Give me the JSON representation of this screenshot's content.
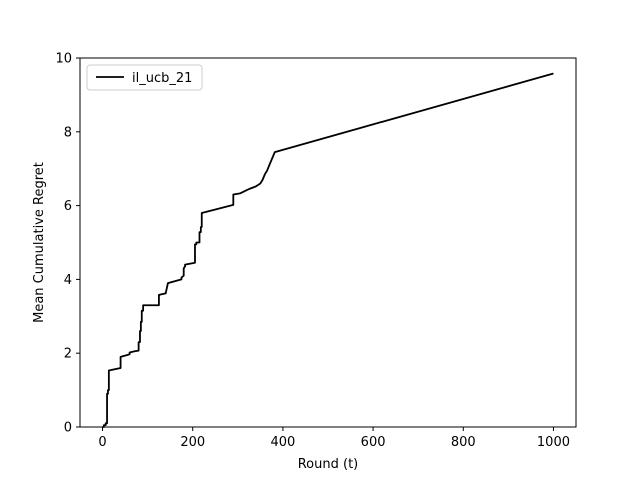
{
  "chart_data": {
    "type": "line",
    "title": "",
    "xlabel": "Round (t)",
    "ylabel": "Mean Cumulative Regret",
    "xlim": [
      -50,
      1050
    ],
    "ylim": [
      0,
      10
    ],
    "xticks": [
      0,
      200,
      400,
      600,
      800,
      1000
    ],
    "yticks": [
      0,
      2,
      4,
      6,
      8,
      10
    ],
    "xtick_labels": [
      "0",
      "200",
      "400",
      "600",
      "800",
      "1000"
    ],
    "ytick_labels": [
      "0",
      "2",
      "4",
      "6",
      "8",
      "10"
    ],
    "grid": false,
    "legend_position": "upper-left",
    "series": [
      {
        "name": "il_ucb_21",
        "color": "#000000",
        "x": [
          0,
          3,
          3,
          7,
          7,
          10,
          10,
          12,
          12,
          14,
          14,
          40,
          40,
          60,
          60,
          70,
          70,
          80,
          80,
          83,
          83,
          85,
          85,
          87,
          87,
          90,
          90,
          125,
          125,
          140,
          140,
          145,
          145,
          175,
          175,
          180,
          180,
          183,
          183,
          205,
          205,
          208,
          208,
          215,
          215,
          218,
          218,
          220,
          220,
          290,
          290,
          305,
          305,
          320,
          320,
          325,
          325,
          340,
          340,
          350,
          350,
          355,
          355,
          360,
          360,
          365,
          365,
          370,
          370,
          382,
          1000
        ],
        "y": [
          0,
          0,
          0.05,
          0.05,
          0.1,
          0.1,
          0.9,
          0.9,
          1.0,
          1.0,
          1.53,
          1.6,
          1.9,
          1.97,
          2.02,
          2.05,
          2.05,
          2.07,
          2.3,
          2.3,
          2.6,
          2.6,
          2.85,
          2.85,
          3.15,
          3.15,
          3.3,
          3.3,
          3.58,
          3.62,
          3.62,
          3.9,
          3.9,
          4.0,
          4.05,
          4.1,
          4.3,
          4.35,
          4.4,
          4.45,
          4.95,
          4.95,
          5.0,
          5.0,
          5.28,
          5.28,
          5.42,
          5.42,
          5.8,
          6.02,
          6.3,
          6.33,
          6.33,
          6.42,
          6.42,
          6.45,
          6.45,
          6.52,
          6.52,
          6.6,
          6.6,
          6.7,
          6.7,
          6.85,
          6.85,
          6.95,
          6.95,
          7.1,
          7.1,
          7.45,
          9.58
        ]
      }
    ]
  }
}
